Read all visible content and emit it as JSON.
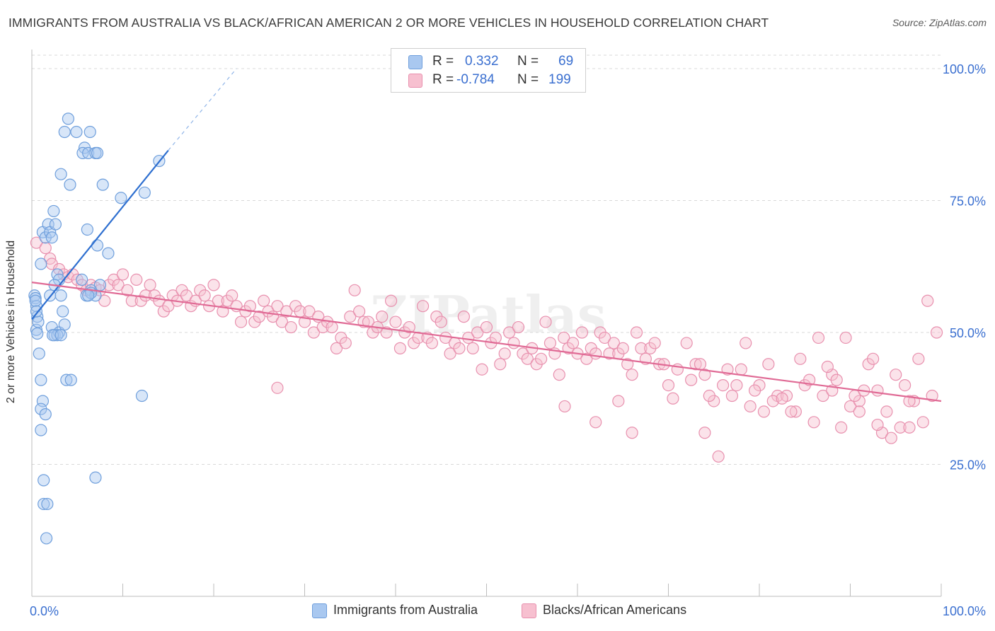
{
  "title": "IMMIGRANTS FROM AUSTRALIA VS BLACK/AFRICAN AMERICAN 2 OR MORE VEHICLES IN HOUSEHOLD CORRELATION CHART",
  "source": "Source: ZipAtlas.com",
  "watermark": "ZIPatlas",
  "legend": {
    "rows": [
      {
        "r_label": "R =",
        "r_value": "0.332",
        "n_label": "N =",
        "n_value": "69",
        "color": "#9cc0f0"
      },
      {
        "r_label": "R =",
        "r_value": "-0.784",
        "n_label": "N =",
        "n_value": "199",
        "color": "#f5b5c8"
      }
    ]
  },
  "bottom_legend": [
    "Immigrants from Australia",
    "Blacks/African Americans"
  ],
  "chart_data": {
    "type": "scatter",
    "title": "IMMIGRANTS FROM AUSTRALIA VS BLACK/AFRICAN AMERICAN 2 OR MORE VEHICLES IN HOUSEHOLD CORRELATION CHART",
    "xlabel": "",
    "ylabel": "2 or more Vehicles in Household",
    "xlim": [
      0,
      100
    ],
    "ylim": [
      0,
      105
    ],
    "x_tick_labels": [
      "0.0%",
      "100.0%"
    ],
    "y_tick_labels": [
      "25.0%",
      "50.0%",
      "75.0%",
      "100.0%"
    ],
    "y_ticks": [
      25,
      50,
      75,
      100
    ],
    "grid": "horizontal dashed",
    "legend_position": "top-center",
    "colors": {
      "blue_fill": "#a9c8f0",
      "blue_stroke": "#6f9fdc",
      "blue_line": "#2e6fd0",
      "pink_fill": "#f7c0d0",
      "pink_stroke": "#e890ae",
      "pink_line": "#e06a95",
      "tick_label": "#3a6fd0"
    },
    "series": [
      {
        "name": "Immigrants from Australia",
        "r": 0.332,
        "n": 69,
        "trend": {
          "x0": 0,
          "y0": 52.5,
          "x1": 15,
          "y1": 84.5,
          "dash_x1": 22.5,
          "dash_y1": 100
        },
        "points": [
          [
            0.3,
            57
          ],
          [
            0.4,
            56.5
          ],
          [
            0.5,
            55
          ],
          [
            0.6,
            53
          ],
          [
            0.5,
            50.5
          ],
          [
            0.6,
            49.8
          ],
          [
            0.4,
            56
          ],
          [
            0.7,
            52
          ],
          [
            0.5,
            54
          ],
          [
            0.8,
            46
          ],
          [
            1.0,
            41
          ],
          [
            1.2,
            37
          ],
          [
            1.0,
            35.5
          ],
          [
            1.5,
            34.5
          ],
          [
            1.0,
            31.5
          ],
          [
            1.3,
            22
          ],
          [
            1.3,
            17.5
          ],
          [
            1.7,
            17.5
          ],
          [
            1.6,
            11
          ],
          [
            1.0,
            63
          ],
          [
            1.2,
            69
          ],
          [
            1.5,
            68
          ],
          [
            1.8,
            70.5
          ],
          [
            2.0,
            69
          ],
          [
            2.2,
            68
          ],
          [
            2.4,
            73
          ],
          [
            2.6,
            70.5
          ],
          [
            2.8,
            61
          ],
          [
            3.0,
            60
          ],
          [
            2.5,
            59
          ],
          [
            2.0,
            57
          ],
          [
            3.2,
            57
          ],
          [
            3.4,
            54
          ],
          [
            2.2,
            51
          ],
          [
            2.5,
            49.5
          ],
          [
            3.0,
            50
          ],
          [
            2.8,
            49.5
          ],
          [
            3.6,
            51.5
          ],
          [
            2.3,
            49.5
          ],
          [
            3.2,
            49.5
          ],
          [
            3.6,
            88
          ],
          [
            4.0,
            90.5
          ],
          [
            4.9,
            88
          ],
          [
            6.4,
            88
          ],
          [
            5.8,
            85
          ],
          [
            5.6,
            84
          ],
          [
            6.2,
            84
          ],
          [
            7.0,
            84
          ],
          [
            7.2,
            84
          ],
          [
            3.2,
            80
          ],
          [
            4.2,
            78
          ],
          [
            7.8,
            78
          ],
          [
            9.8,
            75.5
          ],
          [
            12.4,
            76.5
          ],
          [
            14,
            82.5
          ],
          [
            6.1,
            69.5
          ],
          [
            7.2,
            66.5
          ],
          [
            8.4,
            65
          ],
          [
            5.5,
            60
          ],
          [
            7.5,
            59
          ],
          [
            6.5,
            58
          ],
          [
            6.0,
            57
          ],
          [
            7.0,
            57
          ],
          [
            6.5,
            57.5
          ],
          [
            6.2,
            57
          ],
          [
            3.8,
            41
          ],
          [
            4.3,
            41
          ],
          [
            12.1,
            38
          ],
          [
            7.0,
            22.5
          ]
        ]
      },
      {
        "name": "Blacks/African Americans",
        "r": -0.784,
        "n": 199,
        "trend": {
          "x0": 0,
          "y0": 59.5,
          "x1": 100,
          "y1": 37
        },
        "points": [
          [
            0.5,
            67
          ],
          [
            1.5,
            66
          ],
          [
            2,
            64
          ],
          [
            2.2,
            63
          ],
          [
            3,
            62
          ],
          [
            3.5,
            61
          ],
          [
            4,
            60.5
          ],
          [
            4.5,
            61
          ],
          [
            5,
            60
          ],
          [
            5.5,
            59
          ],
          [
            6,
            58
          ],
          [
            6.5,
            59
          ],
          [
            7,
            58.5
          ],
          [
            7.5,
            58
          ],
          [
            8,
            56
          ],
          [
            8.5,
            59
          ],
          [
            9,
            60
          ],
          [
            9.5,
            59
          ],
          [
            10,
            61
          ],
          [
            10.5,
            58
          ],
          [
            11,
            56
          ],
          [
            11.5,
            60
          ],
          [
            12,
            56
          ],
          [
            12.5,
            57
          ],
          [
            13,
            59
          ],
          [
            13.5,
            57
          ],
          [
            14,
            56
          ],
          [
            14.5,
            54
          ],
          [
            15,
            55
          ],
          [
            15.5,
            57
          ],
          [
            16,
            56
          ],
          [
            16.5,
            58
          ],
          [
            17,
            57
          ],
          [
            17.5,
            55
          ],
          [
            18,
            56
          ],
          [
            18.5,
            58
          ],
          [
            19,
            57
          ],
          [
            19.5,
            55
          ],
          [
            20,
            59
          ],
          [
            20.5,
            56
          ],
          [
            21,
            54
          ],
          [
            21.5,
            56
          ],
          [
            22,
            57
          ],
          [
            22.5,
            55
          ],
          [
            23,
            52
          ],
          [
            23.5,
            54
          ],
          [
            24,
            55
          ],
          [
            24.5,
            52
          ],
          [
            25,
            53
          ],
          [
            25.5,
            56
          ],
          [
            26,
            54
          ],
          [
            26.5,
            53
          ],
          [
            27,
            55
          ],
          [
            27.5,
            52
          ],
          [
            28,
            54
          ],
          [
            28.5,
            51
          ],
          [
            29,
            55
          ],
          [
            29.5,
            54
          ],
          [
            30,
            52
          ],
          [
            30.5,
            54
          ],
          [
            31,
            50
          ],
          [
            31.5,
            53
          ],
          [
            32,
            51
          ],
          [
            32.5,
            52
          ],
          [
            33,
            51
          ],
          [
            33.5,
            47
          ],
          [
            34,
            49
          ],
          [
            34.5,
            48
          ],
          [
            35,
            53
          ],
          [
            35.5,
            58
          ],
          [
            36,
            54
          ],
          [
            36.5,
            52
          ],
          [
            37,
            52
          ],
          [
            37.5,
            50
          ],
          [
            38,
            51
          ],
          [
            38.5,
            53
          ],
          [
            39,
            50
          ],
          [
            39.5,
            56
          ],
          [
            40,
            52
          ],
          [
            40.5,
            47
          ],
          [
            41,
            50
          ],
          [
            41.5,
            51
          ],
          [
            42,
            48
          ],
          [
            42.5,
            49
          ],
          [
            43,
            55
          ],
          [
            43.5,
            49
          ],
          [
            44,
            48
          ],
          [
            44.5,
            53
          ],
          [
            45,
            52
          ],
          [
            45.5,
            49
          ],
          [
            46,
            46
          ],
          [
            46.5,
            48
          ],
          [
            47,
            47
          ],
          [
            47.5,
            53
          ],
          [
            48,
            49
          ],
          [
            48.5,
            47
          ],
          [
            49,
            50
          ],
          [
            49.5,
            43
          ],
          [
            50,
            51
          ],
          [
            50.5,
            48
          ],
          [
            51,
            49
          ],
          [
            51.5,
            44
          ],
          [
            52,
            46
          ],
          [
            52.5,
            50
          ],
          [
            53,
            48
          ],
          [
            53.5,
            51
          ],
          [
            54,
            46
          ],
          [
            54.5,
            45
          ],
          [
            55,
            47
          ],
          [
            55.5,
            44
          ],
          [
            56,
            45
          ],
          [
            56.5,
            52
          ],
          [
            57,
            48
          ],
          [
            57.5,
            46
          ],
          [
            58,
            42
          ],
          [
            58.5,
            49
          ],
          [
            59,
            47
          ],
          [
            59.5,
            48
          ],
          [
            60,
            46
          ],
          [
            60.5,
            50
          ],
          [
            61,
            45
          ],
          [
            61.5,
            47
          ],
          [
            62,
            46
          ],
          [
            62.5,
            50
          ],
          [
            63,
            49
          ],
          [
            63.5,
            46
          ],
          [
            64,
            48
          ],
          [
            64.5,
            46
          ],
          [
            65,
            47
          ],
          [
            65.5,
            44
          ],
          [
            66,
            42
          ],
          [
            66.5,
            50
          ],
          [
            67,
            47
          ],
          [
            67.5,
            45
          ],
          [
            68,
            47
          ],
          [
            68.5,
            48
          ],
          [
            69,
            44
          ],
          [
            70,
            40
          ],
          [
            71,
            43
          ],
          [
            72,
            48
          ],
          [
            73,
            44
          ],
          [
            74,
            42
          ],
          [
            75,
            37
          ],
          [
            76,
            40
          ],
          [
            77,
            38
          ],
          [
            78,
            43
          ],
          [
            79,
            36
          ],
          [
            80,
            40
          ],
          [
            81,
            44
          ],
          [
            82,
            38
          ],
          [
            83,
            38
          ],
          [
            84,
            35
          ],
          [
            85,
            40
          ],
          [
            86,
            33
          ],
          [
            87,
            38
          ],
          [
            88,
            42
          ],
          [
            89,
            32
          ],
          [
            90,
            36
          ],
          [
            91,
            37
          ],
          [
            92,
            44
          ],
          [
            93,
            39
          ],
          [
            94,
            35
          ],
          [
            95,
            42
          ],
          [
            96,
            40
          ],
          [
            97,
            37
          ],
          [
            98,
            33
          ],
          [
            99,
            38
          ],
          [
            58.6,
            36
          ],
          [
            62,
            33
          ],
          [
            64.5,
            37
          ],
          [
            66,
            31
          ],
          [
            69.5,
            44
          ],
          [
            70.5,
            37.5
          ],
          [
            72.5,
            41
          ],
          [
            73.5,
            44
          ],
          [
            74.5,
            38
          ],
          [
            76.5,
            43
          ],
          [
            77.5,
            40
          ],
          [
            78.5,
            48
          ],
          [
            79.5,
            39
          ],
          [
            80.5,
            35
          ],
          [
            81.5,
            37
          ],
          [
            82.5,
            37.5
          ],
          [
            83.5,
            35
          ],
          [
            84.5,
            45
          ],
          [
            85.5,
            41
          ],
          [
            86.5,
            49
          ],
          [
            87.5,
            43.5
          ],
          [
            88.5,
            41
          ],
          [
            89.5,
            49
          ],
          [
            90.5,
            38
          ],
          [
            91.5,
            39
          ],
          [
            92.5,
            45
          ],
          [
            93.5,
            31
          ],
          [
            94.5,
            30
          ],
          [
            95.5,
            32
          ],
          [
            96.5,
            37
          ],
          [
            97.5,
            45
          ],
          [
            98.5,
            56
          ],
          [
            99.5,
            50
          ],
          [
            93,
            32.5
          ],
          [
            91,
            35
          ],
          [
            96.5,
            32
          ],
          [
            75.5,
            26.5
          ],
          [
            74,
            31
          ],
          [
            88,
            39
          ],
          [
            27,
            39.5
          ]
        ]
      }
    ]
  }
}
